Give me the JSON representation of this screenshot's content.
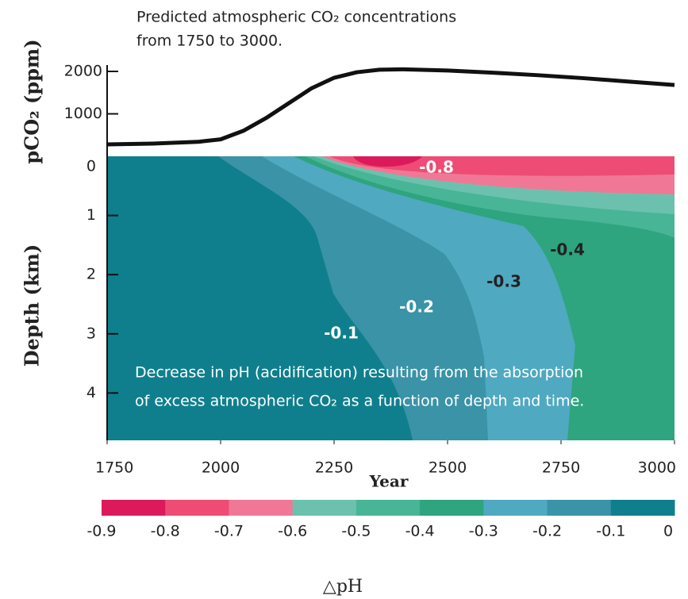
{
  "chart_data": [
    {
      "type": "line",
      "title": [
        "Predicted atmospheric CO₂ concentrations",
        "from 1750 to 3000."
      ],
      "ylabel": "pCO₂ (ppm)",
      "x": [
        1750,
        1850,
        1950,
        2000,
        2050,
        2100,
        2150,
        2200,
        2250,
        2300,
        2350,
        2400,
        2500,
        2600,
        2700,
        2800,
        2900,
        3000
      ],
      "values": [
        280,
        300,
        340,
        400,
        600,
        900,
        1250,
        1600,
        1850,
        1980,
        2040,
        2050,
        2020,
        1970,
        1910,
        1840,
        1760,
        1680
      ],
      "color": "#111111",
      "xlim": [
        1750,
        3000
      ],
      "ylim": [
        0,
        2000
      ],
      "yticks": [
        1000,
        2000
      ]
    },
    {
      "type": "contour",
      "ylabel": "Depth (km)",
      "xlabel": "Year",
      "xlim": [
        1750,
        3000
      ],
      "xticks": [
        1750,
        2000,
        2250,
        2500,
        2750,
        3000
      ],
      "ylim": [
        0,
        4.8
      ],
      "yticks": [
        0,
        1,
        2,
        3,
        4
      ],
      "contour_labels": [
        "-0.8",
        "-0.4",
        "-0.3",
        "-0.2",
        "-0.1"
      ],
      "annotation": [
        "Decrease in pH (acidification) resulting from the absorption",
        "of excess atmospheric CO₂ as a function of depth and time."
      ],
      "colorbar": {
        "label": "△pH",
        "levels": [
          -0.9,
          -0.8,
          -0.7,
          -0.6,
          -0.5,
          -0.4,
          -0.3,
          -0.2,
          -0.1,
          0
        ],
        "colors": [
          "#dc1a5b",
          "#ee4c74",
          "#f07896",
          "#6cc1ae",
          "#48b596",
          "#2ea47f",
          "#4fa9c0",
          "#3a93a6",
          "#0f7f8d"
        ]
      }
    }
  ]
}
